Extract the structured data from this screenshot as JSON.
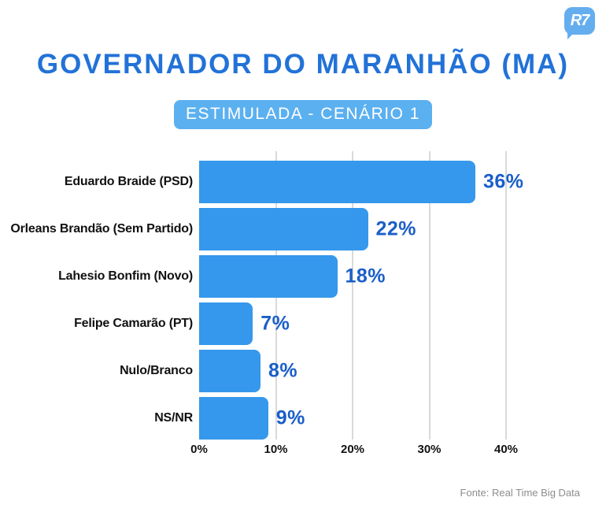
{
  "header": {
    "logo_text": "R7",
    "title": "GOVERNADOR DO MARANHÃO (MA)",
    "badge": "ESTIMULADA - CENÁRIO 1"
  },
  "footer": {
    "source": "Fonte: Real Time Big Data"
  },
  "colors": {
    "bar": "#3598ec",
    "value_label": "#1a5ec8",
    "title": "#2272d8",
    "badge_bg": "#5bb0f0",
    "logo_bg": "#64aef0",
    "gridline": "#d9d9d9"
  },
  "chart_data": {
    "type": "bar",
    "orientation": "horizontal",
    "title": "GOVERNADOR DO MARANHÃO (MA)",
    "subtitle": "ESTIMULADA - CENÁRIO 1",
    "categories": [
      "Eduardo Braide (PSD)",
      "Orleans Brandão (Sem Partido)",
      "Lahesio Bonfim (Novo)",
      "Felipe Camarão (PT)",
      "Nulo/Branco",
      "NS/NR"
    ],
    "values": [
      36,
      22,
      18,
      7,
      8,
      9
    ],
    "value_labels": [
      "36%",
      "22%",
      "18%",
      "7%",
      "8%",
      "9%"
    ],
    "x_ticks": [
      "0%",
      "10%",
      "20%",
      "30%",
      "40%"
    ],
    "x_tick_values": [
      0,
      10,
      20,
      30,
      40
    ],
    "xlim": [
      0,
      40
    ],
    "grid": true,
    "legend": false,
    "source": "Fonte: Real Time Big Data"
  }
}
